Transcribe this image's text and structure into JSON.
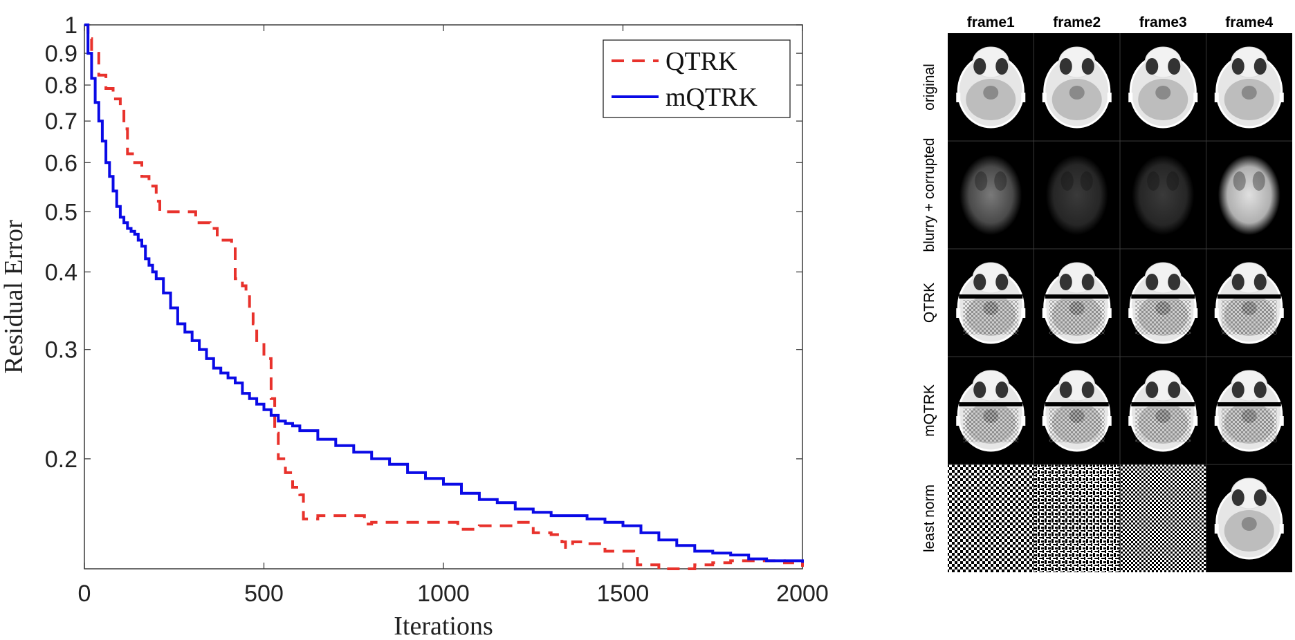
{
  "chart_data": [
    {
      "type": "line",
      "title": "",
      "xlabel": "Iterations",
      "ylabel": "Residual Error",
      "yscale": "log",
      "xlim": [
        0,
        2000
      ],
      "ylim": [
        0.133,
        1.0
      ],
      "x_ticks": [
        0,
        500,
        1000,
        1500,
        2000
      ],
      "x_tick_labels": [
        "0",
        "500",
        "1000",
        "1500",
        "2000"
      ],
      "y_ticks": [
        1,
        0.9,
        0.8,
        0.7,
        0.6,
        0.5,
        0.4,
        0.3,
        0.2
      ],
      "y_tick_labels": [
        "1",
        "0.9",
        "0.8",
        "0.7",
        "0.6",
        "0.5",
        "0.4",
        "0.3",
        "0.2"
      ],
      "grid": false,
      "legend": "top-right",
      "series": [
        {
          "name": "QTRK",
          "style": "dashed",
          "color": "#e8322c",
          "x": [
            0,
            10,
            20,
            40,
            60,
            80,
            100,
            110,
            120,
            140,
            160,
            180,
            200,
            210,
            250,
            300,
            310,
            350,
            370,
            400,
            410,
            420,
            440,
            450,
            460,
            470,
            480,
            500,
            520,
            530,
            540,
            560,
            580,
            600,
            610,
            650,
            700,
            750,
            780,
            800,
            850,
            900,
            950,
            1000,
            1040,
            1050,
            1100,
            1150,
            1200,
            1250,
            1300,
            1330,
            1340,
            1360,
            1400,
            1450,
            1500,
            1530,
            1540,
            1600,
            1650,
            1700,
            1750,
            1800,
            1850,
            1900,
            1950,
            2000
          ],
          "y": [
            1.0,
            0.95,
            0.9,
            0.83,
            0.79,
            0.76,
            0.73,
            0.68,
            0.62,
            0.6,
            0.57,
            0.55,
            0.52,
            0.5,
            0.5,
            0.5,
            0.48,
            0.47,
            0.45,
            0.45,
            0.44,
            0.39,
            0.38,
            0.37,
            0.35,
            0.33,
            0.31,
            0.29,
            0.25,
            0.22,
            0.2,
            0.19,
            0.18,
            0.175,
            0.16,
            0.162,
            0.162,
            0.162,
            0.157,
            0.158,
            0.158,
            0.158,
            0.158,
            0.158,
            0.155,
            0.154,
            0.156,
            0.156,
            0.158,
            0.152,
            0.151,
            0.147,
            0.144,
            0.147,
            0.146,
            0.142,
            0.142,
            0.14,
            0.135,
            0.133,
            0.133,
            0.135,
            0.136,
            0.137,
            0.137,
            0.137,
            0.136,
            0.134
          ]
        },
        {
          "name": "mQTRK",
          "style": "solid",
          "color": "#0a0ae6",
          "x": [
            0,
            10,
            20,
            30,
            40,
            50,
            60,
            70,
            80,
            90,
            100,
            110,
            120,
            130,
            140,
            150,
            160,
            170,
            180,
            190,
            200,
            220,
            240,
            260,
            280,
            300,
            320,
            340,
            360,
            380,
            400,
            420,
            440,
            460,
            480,
            500,
            520,
            540,
            560,
            580,
            600,
            650,
            700,
            750,
            800,
            850,
            900,
            950,
            1000,
            1050,
            1100,
            1150,
            1200,
            1250,
            1300,
            1350,
            1400,
            1450,
            1500,
            1550,
            1600,
            1650,
            1700,
            1750,
            1800,
            1850,
            1900,
            1950,
            2000
          ],
          "y": [
            1.0,
            0.9,
            0.82,
            0.75,
            0.7,
            0.65,
            0.6,
            0.57,
            0.54,
            0.51,
            0.49,
            0.48,
            0.47,
            0.465,
            0.46,
            0.45,
            0.44,
            0.42,
            0.41,
            0.4,
            0.39,
            0.37,
            0.35,
            0.33,
            0.32,
            0.31,
            0.3,
            0.29,
            0.28,
            0.275,
            0.27,
            0.265,
            0.255,
            0.25,
            0.245,
            0.24,
            0.235,
            0.23,
            0.228,
            0.226,
            0.222,
            0.215,
            0.21,
            0.205,
            0.2,
            0.196,
            0.19,
            0.186,
            0.182,
            0.176,
            0.172,
            0.17,
            0.166,
            0.164,
            0.162,
            0.162,
            0.16,
            0.158,
            0.156,
            0.152,
            0.148,
            0.145,
            0.142,
            0.141,
            0.14,
            0.138,
            0.137,
            0.137,
            0.136
          ]
        }
      ]
    },
    {
      "type": "image-grid",
      "columns": [
        "frame1",
        "frame2",
        "frame3",
        "frame4"
      ],
      "rows": [
        "original",
        "blurry + corrupted",
        "QTRK",
        "mQTRK",
        "least norm"
      ],
      "cells": [
        [
          "brain-slice",
          "brain-slice",
          "brain-slice",
          "brain-slice"
        ],
        [
          "blurred-brain",
          "blurred-brain",
          "blurred-brain",
          "blurred-brain"
        ],
        [
          "reconstructed-brain",
          "reconstructed-brain",
          "reconstructed-brain",
          "reconstructed-brain"
        ],
        [
          "reconstructed-brain",
          "reconstructed-brain",
          "reconstructed-brain",
          "reconstructed-brain"
        ],
        [
          "noise-pattern",
          "noise-pattern",
          "noise-pattern",
          "brain-slice"
        ]
      ]
    }
  ]
}
